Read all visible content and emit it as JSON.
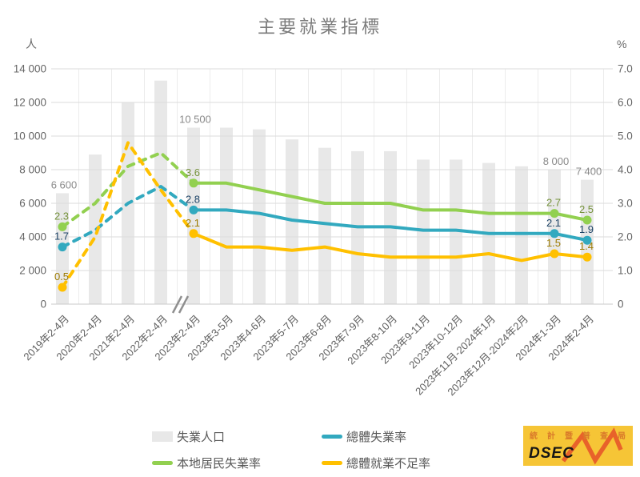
{
  "title": "主要就業指標",
  "axes": {
    "left_unit": "人",
    "right_unit": "%",
    "left_ticks": [
      "0",
      "2 000",
      "4 000",
      "6 000",
      "8 000",
      "10 000",
      "12 000",
      "14 000"
    ],
    "right_ticks": [
      "0",
      "1.0",
      "2.0",
      "3.0",
      "4.0",
      "5.0",
      "6.0",
      "7.0"
    ],
    "break_mark": "//"
  },
  "chart_data": {
    "type": "bar+line",
    "categories": [
      "2019年2-4月",
      "2020年2-4月",
      "2021年2-4月",
      "2022年2-4月",
      "2023年2-4月",
      "2023年3-5月",
      "2023年4-6月",
      "2023年5-7月",
      "2023年6-8月",
      "2023年7-9月",
      "2023年8-10月",
      "2023年9-11月",
      "2023年10-12月",
      "2023年11月-2024年1月",
      "2023年12月-2024年2月",
      "2024年1-3月",
      "2024年2-4月"
    ],
    "left_axis": {
      "label": "人",
      "min": 0,
      "max": 14000,
      "step": 2000
    },
    "right_axis": {
      "label": "%",
      "min": 0,
      "max": 7.0,
      "step": 1.0
    },
    "axis_break_between": [
      "2022年2-4月",
      "2023年2-4月"
    ],
    "dashed_through_index": 4,
    "marker_indices": [
      0,
      4,
      15,
      16
    ],
    "series": [
      {
        "id": "unemployed-population",
        "name": "失業人口",
        "type": "bar",
        "color": "#E8E8E8",
        "values": [
          6600,
          8900,
          12000,
          13300,
          10500,
          10500,
          10400,
          9800,
          9300,
          9100,
          9100,
          8600,
          8600,
          8400,
          8200,
          8000,
          7400
        ],
        "point_labels": {
          "0": "6 600",
          "4": "10 500",
          "15": "8 000",
          "16": "7 400"
        },
        "label_color": "#8a8a8a"
      },
      {
        "id": "overall-unemployment-rate",
        "name": "總體失業率",
        "type": "line",
        "color": "#32A9BF",
        "values": [
          1.7,
          2.2,
          3.0,
          3.5,
          2.8,
          2.8,
          2.7,
          2.5,
          2.4,
          2.3,
          2.3,
          2.2,
          2.2,
          2.1,
          2.1,
          2.1,
          1.9
        ],
        "point_labels": {
          "0": "1.7",
          "4": "2.8",
          "15": "2.1",
          "16": "1.9"
        },
        "label_color": "#1F4568"
      },
      {
        "id": "local-residents-unemployment-rate",
        "name": "本地居民失業率",
        "type": "line",
        "color": "#92D050",
        "values": [
          2.3,
          3.0,
          4.1,
          4.5,
          3.6,
          3.6,
          3.4,
          3.2,
          3.0,
          3.0,
          3.0,
          2.8,
          2.8,
          2.7,
          2.7,
          2.7,
          2.5
        ],
        "point_labels": {
          "0": "2.3",
          "4": "3.6",
          "15": "2.7",
          "16": "2.5"
        },
        "label_color": "#75923B"
      },
      {
        "id": "overall-underemployment-rate",
        "name": "總體就業不足率",
        "type": "line",
        "color": "#FFC000",
        "values": [
          0.5,
          2.0,
          4.8,
          3.4,
          2.1,
          1.7,
          1.7,
          1.6,
          1.7,
          1.5,
          1.4,
          1.4,
          1.4,
          1.5,
          1.3,
          1.5,
          1.4
        ],
        "point_labels": {
          "0": "0.5",
          "4": "2.1",
          "15": "1.5",
          "16": "1.4"
        },
        "label_color": "#9C7A00"
      }
    ]
  },
  "legend": {
    "items": [
      {
        "label": "失業人口",
        "color": "#E8E8E8",
        "kind": "box"
      },
      {
        "label": "總體失業率",
        "color": "#32A9BF",
        "kind": "line"
      },
      {
        "label": "本地居民失業率",
        "color": "#92D050",
        "kind": "line"
      },
      {
        "label": "總體就業不足率",
        "color": "#FFC000",
        "kind": "line"
      }
    ]
  },
  "logo": {
    "org": "統計暨普查局",
    "abbr": "DSEC"
  }
}
